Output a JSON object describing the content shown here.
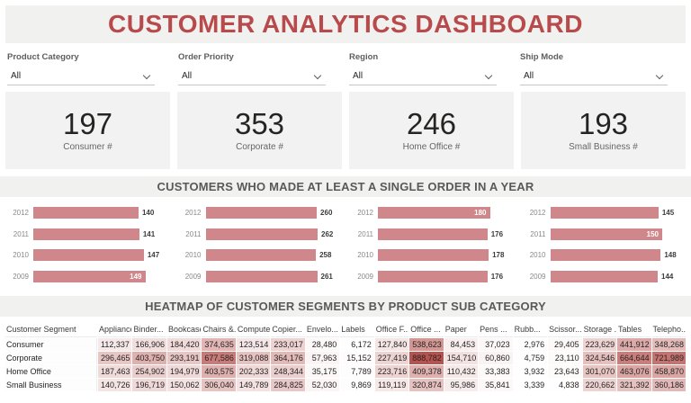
{
  "title": "CUSTOMER ANALYTICS DASHBOARD",
  "colors": {
    "title_red": "#b94a4b",
    "banner_bg": "#f1f1f0",
    "card_bg": "#f2f2f2",
    "bar_fill": "#d0878b",
    "heat_max": "#b7534f",
    "section_text": "#595959"
  },
  "filters": [
    {
      "label": "Product Category",
      "value": "All"
    },
    {
      "label": "Order Priority",
      "value": "All"
    },
    {
      "label": "Region",
      "value": "All"
    },
    {
      "label": "Ship Mode",
      "value": "All"
    }
  ],
  "kpis": [
    {
      "value": "197",
      "label": "Consumer #"
    },
    {
      "value": "353",
      "label": "Corporate #"
    },
    {
      "value": "246",
      "label": "Home Office #"
    },
    {
      "value": "193",
      "label": "Small Business #"
    }
  ],
  "section1_title": "CUSTOMERS WHO MADE AT LEAST A SINGLE ORDER IN A YEAR",
  "section2_title": "HEATMAP OF CUSTOMER SEGMENTS BY PRODUCT SUB CATEGORY",
  "chart_data": [
    {
      "type": "bar",
      "orientation": "horizontal",
      "name": "Consumer",
      "categories": [
        "2012",
        "2011",
        "2010",
        "2009"
      ],
      "values": [
        140,
        141,
        147,
        149
      ],
      "label_inside": [
        false,
        false,
        false,
        true
      ],
      "xlim": [
        0,
        149
      ]
    },
    {
      "type": "bar",
      "orientation": "horizontal",
      "name": "Corporate",
      "categories": [
        "2012",
        "2011",
        "2010",
        "2009"
      ],
      "values": [
        260,
        262,
        258,
        261
      ],
      "label_inside": [
        false,
        false,
        false,
        false
      ],
      "xlim": [
        0,
        262
      ]
    },
    {
      "type": "bar",
      "orientation": "horizontal",
      "name": "Home Office",
      "categories": [
        "2012",
        "2011",
        "2010",
        "2009"
      ],
      "values": [
        180,
        176,
        178,
        176
      ],
      "label_inside": [
        true,
        false,
        false,
        false
      ],
      "xlim": [
        0,
        180
      ]
    },
    {
      "type": "bar",
      "orientation": "horizontal",
      "name": "Small Business",
      "categories": [
        "2012",
        "2011",
        "2010",
        "2009"
      ],
      "values": [
        145,
        150,
        148,
        144
      ],
      "label_inside": [
        false,
        true,
        false,
        false
      ],
      "xlim": [
        0,
        150
      ]
    }
  ],
  "heatmap": {
    "type": "heatmap",
    "columns": [
      "Customer Segment",
      "Appliances",
      "Binder...",
      "Bookcases",
      "Chairs &...",
      "Compute...",
      "Copier...",
      "Envelo...",
      "Labels",
      "Office F...",
      "Office ...",
      "Paper",
      "Pens ...",
      "Rubb...",
      "Scissor...",
      "Storage ...",
      "Tables",
      "Telepho..."
    ],
    "rows": [
      {
        "segment": "Consumer",
        "values": [
          "112,337",
          "166,906",
          "184,420",
          "374,635",
          "123,514",
          "233,017",
          "28,480",
          "6,172",
          "127,840",
          "538,623",
          "84,453",
          "37,023",
          "2,976",
          "29,405",
          "223,629",
          "441,912",
          "348,268"
        ]
      },
      {
        "segment": "Corporate",
        "values": [
          "296,465",
          "403,750",
          "293,191",
          "677,586",
          "319,088",
          "364,176",
          "57,963",
          "15,152",
          "227,419",
          "888,782",
          "154,710",
          "60,860",
          "4,759",
          "23,110",
          "324,546",
          "664,644",
          "721,989"
        ]
      },
      {
        "segment": "Home Office",
        "values": [
          "187,463",
          "254,902",
          "194,979",
          "403,575",
          "202,333",
          "248,344",
          "35,175",
          "7,789",
          "223,716",
          "409,378",
          "110,432",
          "33,383",
          "3,932",
          "23,643",
          "301,070",
          "463,076",
          "458,870"
        ]
      },
      {
        "segment": "Small Business",
        "values": [
          "140,726",
          "196,719",
          "150,062",
          "306,040",
          "149,789",
          "284,825",
          "52,030",
          "9,869",
          "119,119",
          "320,874",
          "95,986",
          "35,841",
          "3,339",
          "4,838",
          "220,662",
          "321,392",
          "360,186"
        ]
      }
    ],
    "max_value": 888782
  }
}
